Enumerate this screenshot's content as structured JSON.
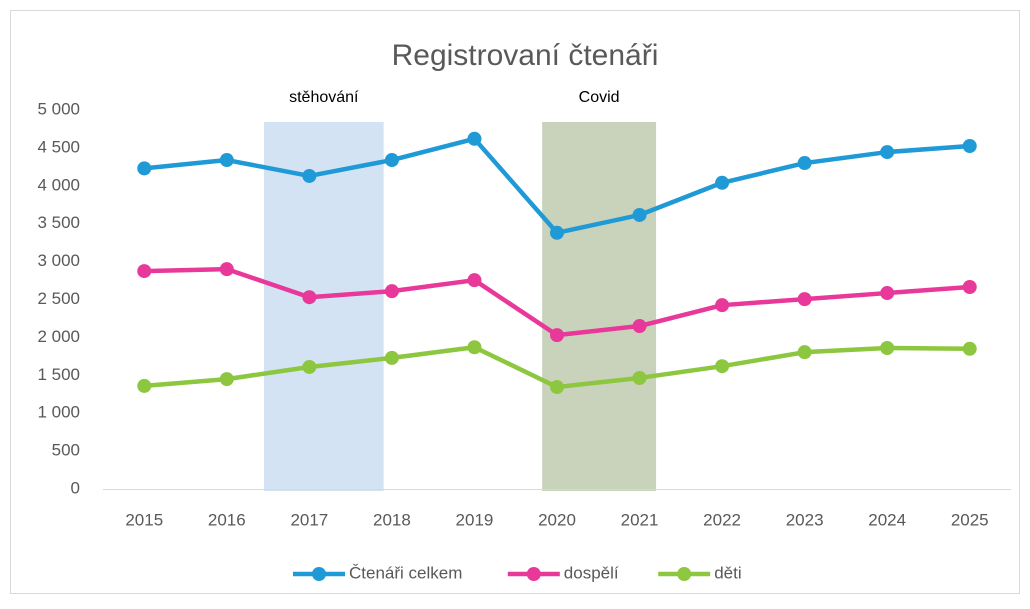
{
  "chart_data": {
    "type": "line",
    "title": "Registrovaní čtenáři",
    "x": [
      2015,
      2016,
      2017,
      2018,
      2019,
      2020,
      2021,
      2022,
      2023,
      2024,
      2025
    ],
    "xlim": [
      2014.5,
      2025.5
    ],
    "xticks": [
      2015,
      2016,
      2017,
      2018,
      2019,
      2020,
      2021,
      2022,
      2023,
      2024,
      2025
    ],
    "ylim": [
      0,
      5000
    ],
    "yticks": [
      0,
      500,
      {
        "value": 1000,
        "label": "1 000"
      },
      {
        "value": 1500,
        "label": "1 500"
      },
      {
        "value": 2000,
        "label": "2 000"
      },
      {
        "value": 2500,
        "label": "2 500"
      },
      {
        "value": 3000,
        "label": "3 000"
      },
      {
        "value": 3500,
        "label": "3 500"
      },
      {
        "value": 4000,
        "label": "4 000"
      },
      {
        "value": 4500,
        "label": "4 500"
      },
      {
        "value": 5000,
        "label": "5 000"
      }
    ],
    "grid": false,
    "legend": "bottom",
    "series": [
      {
        "name": "Čtenáři celkem",
        "color": "#1f9ad6",
        "values": [
          4230,
          4340,
          4130,
          4340,
          4620,
          3380,
          3615,
          4040,
          4300,
          4445,
          4525
        ]
      },
      {
        "name": "dospělí",
        "color": "#e8399a",
        "values": [
          2875,
          2900,
          2530,
          2610,
          2755,
          2030,
          2150,
          2425,
          2505,
          2585,
          2665
        ]
      },
      {
        "name": "děti",
        "color": "#8dc63f",
        "values": [
          1360,
          1450,
          1610,
          1730,
          1870,
          1345,
          1465,
          1620,
          1805,
          1860,
          1850
        ]
      }
    ],
    "annotations": [
      {
        "text": "stěhování",
        "x_start": 2016.45,
        "x_end": 2017.9,
        "color": "#c5d9f0"
      },
      {
        "text": "Covid",
        "x_start": 2019.82,
        "x_end": 2021.2,
        "color": "#b7c4a6"
      }
    ]
  }
}
